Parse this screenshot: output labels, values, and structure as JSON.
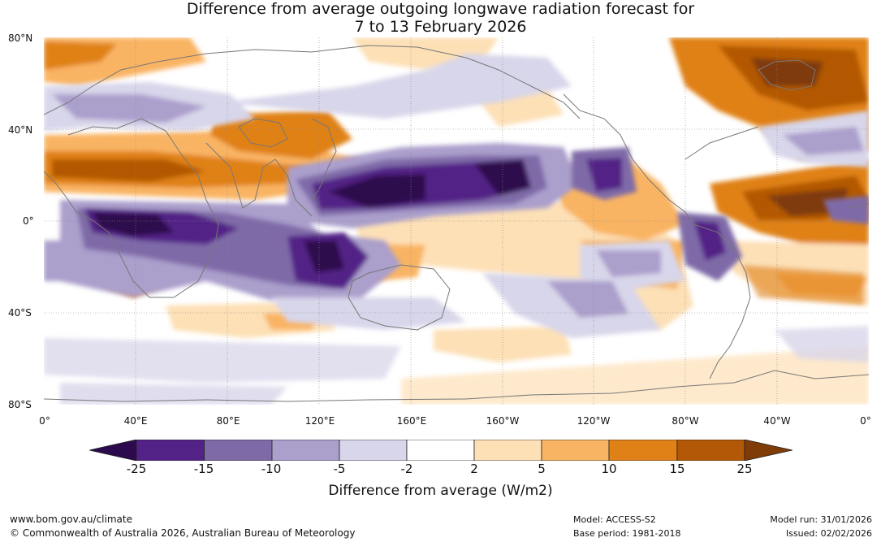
{
  "title": {
    "line1": "Difference from average outgoing longwave radiation forecast for",
    "line2": "7 to 13 February 2026"
  },
  "map": {
    "lat_labels": [
      "80°N",
      "40°N",
      "0°",
      "40°S",
      "80°S"
    ],
    "lon_labels": [
      "0°",
      "40°E",
      "80°E",
      "120°E",
      "160°E",
      "160°W",
      "120°W",
      "80°W",
      "40°W",
      "0°"
    ]
  },
  "legend": {
    "colors": [
      "#2d0a4d",
      "#522286",
      "#7f6aa8",
      "#ab9fcc",
      "#d8d6ea",
      "#ffffff",
      "#fde0b6",
      "#f9b463",
      "#e08117",
      "#b35806",
      "#7f3b08"
    ],
    "ticks": [
      "-25",
      "-15",
      "-10",
      "-5",
      "-2",
      "2",
      "5",
      "10",
      "15",
      "25"
    ],
    "title": "Difference from average (W/m2)"
  },
  "footer": {
    "site": "www.bom.gov.au/climate",
    "copyright": "© Commonwealth of Australia 2026, Australian Bureau of Meteorology",
    "model": "Model: ACCESS-S2",
    "base_period": "Base period: 1981-2018",
    "model_run": "Model run: 31/01/2026",
    "issued": "Issued: 02/02/2026"
  }
}
